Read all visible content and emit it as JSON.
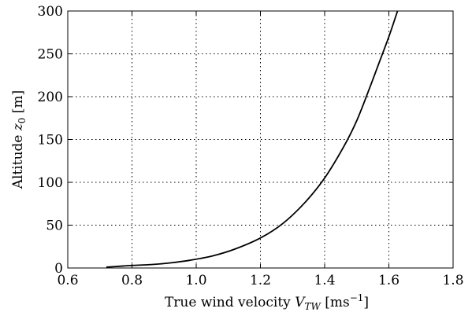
{
  "chart_data": {
    "type": "line",
    "title": "",
    "xlabel": {
      "prefix": "True wind velocity ",
      "symbol": "V",
      "subscript": "TW",
      "unit_open": " [ms",
      "unit_exp": "−1",
      "unit_close": "]"
    },
    "ylabel": {
      "prefix": "Altitude ",
      "symbol": "z",
      "subscript": "0",
      "unit": " [m]"
    },
    "xlim": [
      0.6,
      1.8
    ],
    "ylim": [
      0,
      300
    ],
    "xticks": [
      0.6,
      0.8,
      1.0,
      1.2,
      1.4,
      1.6,
      1.8
    ],
    "xtick_labels": [
      "0.6",
      "0.8",
      "1.0",
      "1.2",
      "1.4",
      "1.6",
      "1.8"
    ],
    "yticks": [
      0,
      50,
      100,
      150,
      200,
      250,
      300
    ],
    "ytick_labels": [
      "0",
      "50",
      "100",
      "150",
      "200",
      "250",
      "300"
    ],
    "grid": true,
    "series": [
      {
        "color": "#000000",
        "x": [
          0.72,
          0.76,
          0.8,
          0.86,
          0.92,
          0.98,
          1.05,
          1.12,
          1.2,
          1.27,
          1.34,
          1.4,
          1.46,
          1.5,
          1.54,
          1.57,
          1.6,
          1.627
        ],
        "y": [
          1,
          2,
          3,
          4,
          6,
          9,
          14,
          22,
          35,
          52,
          77,
          105,
          142,
          172,
          210,
          240,
          270,
          300
        ]
      }
    ]
  }
}
